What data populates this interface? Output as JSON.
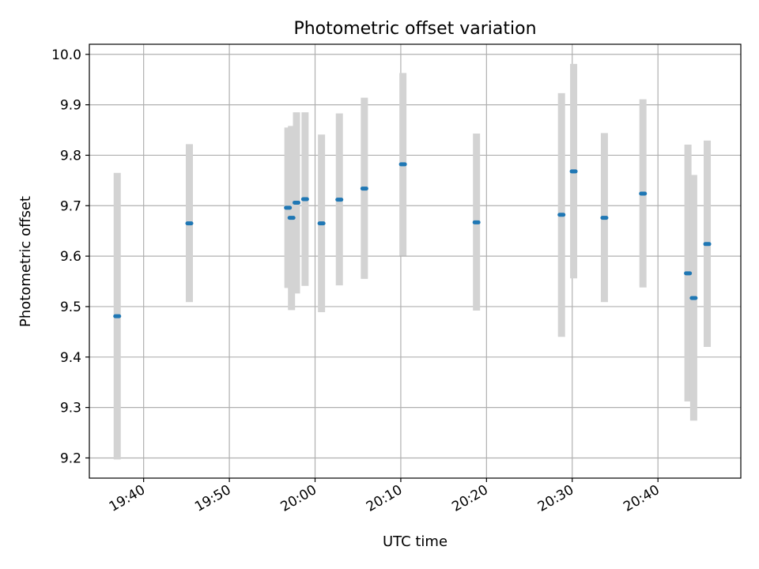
{
  "chart_data": {
    "type": "scatter",
    "title": "Photometric offset variation",
    "xlabel": "UTC time",
    "ylabel": "Photometric offset",
    "x_unit": "UTC time of day",
    "xlim": [
      "19:33:40",
      "20:49:40"
    ],
    "ylim": [
      9.16,
      10.02
    ],
    "x_ticks": [
      "19:40",
      "19:50",
      "20:00",
      "20:10",
      "20:20",
      "20:30",
      "20:40"
    ],
    "y_ticks": [
      9.2,
      9.3,
      9.4,
      9.5,
      9.6,
      9.7,
      9.8,
      9.9,
      10.0
    ],
    "y_tick_labels": [
      "9.2",
      "9.3",
      "9.4",
      "9.5",
      "9.6",
      "9.7",
      "9.8",
      "9.9",
      "10.0"
    ],
    "grid": true,
    "colors": {
      "marker": "#1f77b4",
      "errorbar": "#d3d3d3"
    },
    "points": [
      {
        "x": "19:36:55",
        "y": 9.481,
        "ylow": 9.197,
        "yhigh": 9.765
      },
      {
        "x": "19:45:20",
        "y": 9.665,
        "ylow": 9.509,
        "yhigh": 9.822
      },
      {
        "x": "19:56:50",
        "y": 9.696,
        "ylow": 9.537,
        "yhigh": 9.855
      },
      {
        "x": "19:57:15",
        "y": 9.676,
        "ylow": 9.493,
        "yhigh": 9.858
      },
      {
        "x": "19:57:50",
        "y": 9.706,
        "ylow": 9.526,
        "yhigh": 9.885
      },
      {
        "x": "19:58:50",
        "y": 9.713,
        "ylow": 9.541,
        "yhigh": 9.885
      },
      {
        "x": "20:00:45",
        "y": 9.665,
        "ylow": 9.489,
        "yhigh": 9.841
      },
      {
        "x": "20:02:50",
        "y": 9.712,
        "ylow": 9.542,
        "yhigh": 9.883
      },
      {
        "x": "20:05:45",
        "y": 9.734,
        "ylow": 9.555,
        "yhigh": 9.914
      },
      {
        "x": "20:10:15",
        "y": 9.782,
        "ylow": 9.601,
        "yhigh": 9.963
      },
      {
        "x": "20:18:50",
        "y": 9.667,
        "ylow": 9.492,
        "yhigh": 9.843
      },
      {
        "x": "20:28:45",
        "y": 9.682,
        "ylow": 9.44,
        "yhigh": 9.923
      },
      {
        "x": "20:30:10",
        "y": 9.768,
        "ylow": 9.556,
        "yhigh": 9.981
      },
      {
        "x": "20:33:45",
        "y": 9.676,
        "ylow": 9.509,
        "yhigh": 9.844
      },
      {
        "x": "20:38:15",
        "y": 9.724,
        "ylow": 9.538,
        "yhigh": 9.911
      },
      {
        "x": "20:43:30",
        "y": 9.566,
        "ylow": 9.312,
        "yhigh": 9.821
      },
      {
        "x": "20:44:10",
        "y": 9.517,
        "ylow": 9.274,
        "yhigh": 9.761
      },
      {
        "x": "20:45:45",
        "y": 9.624,
        "ylow": 9.42,
        "yhigh": 9.829
      }
    ]
  }
}
